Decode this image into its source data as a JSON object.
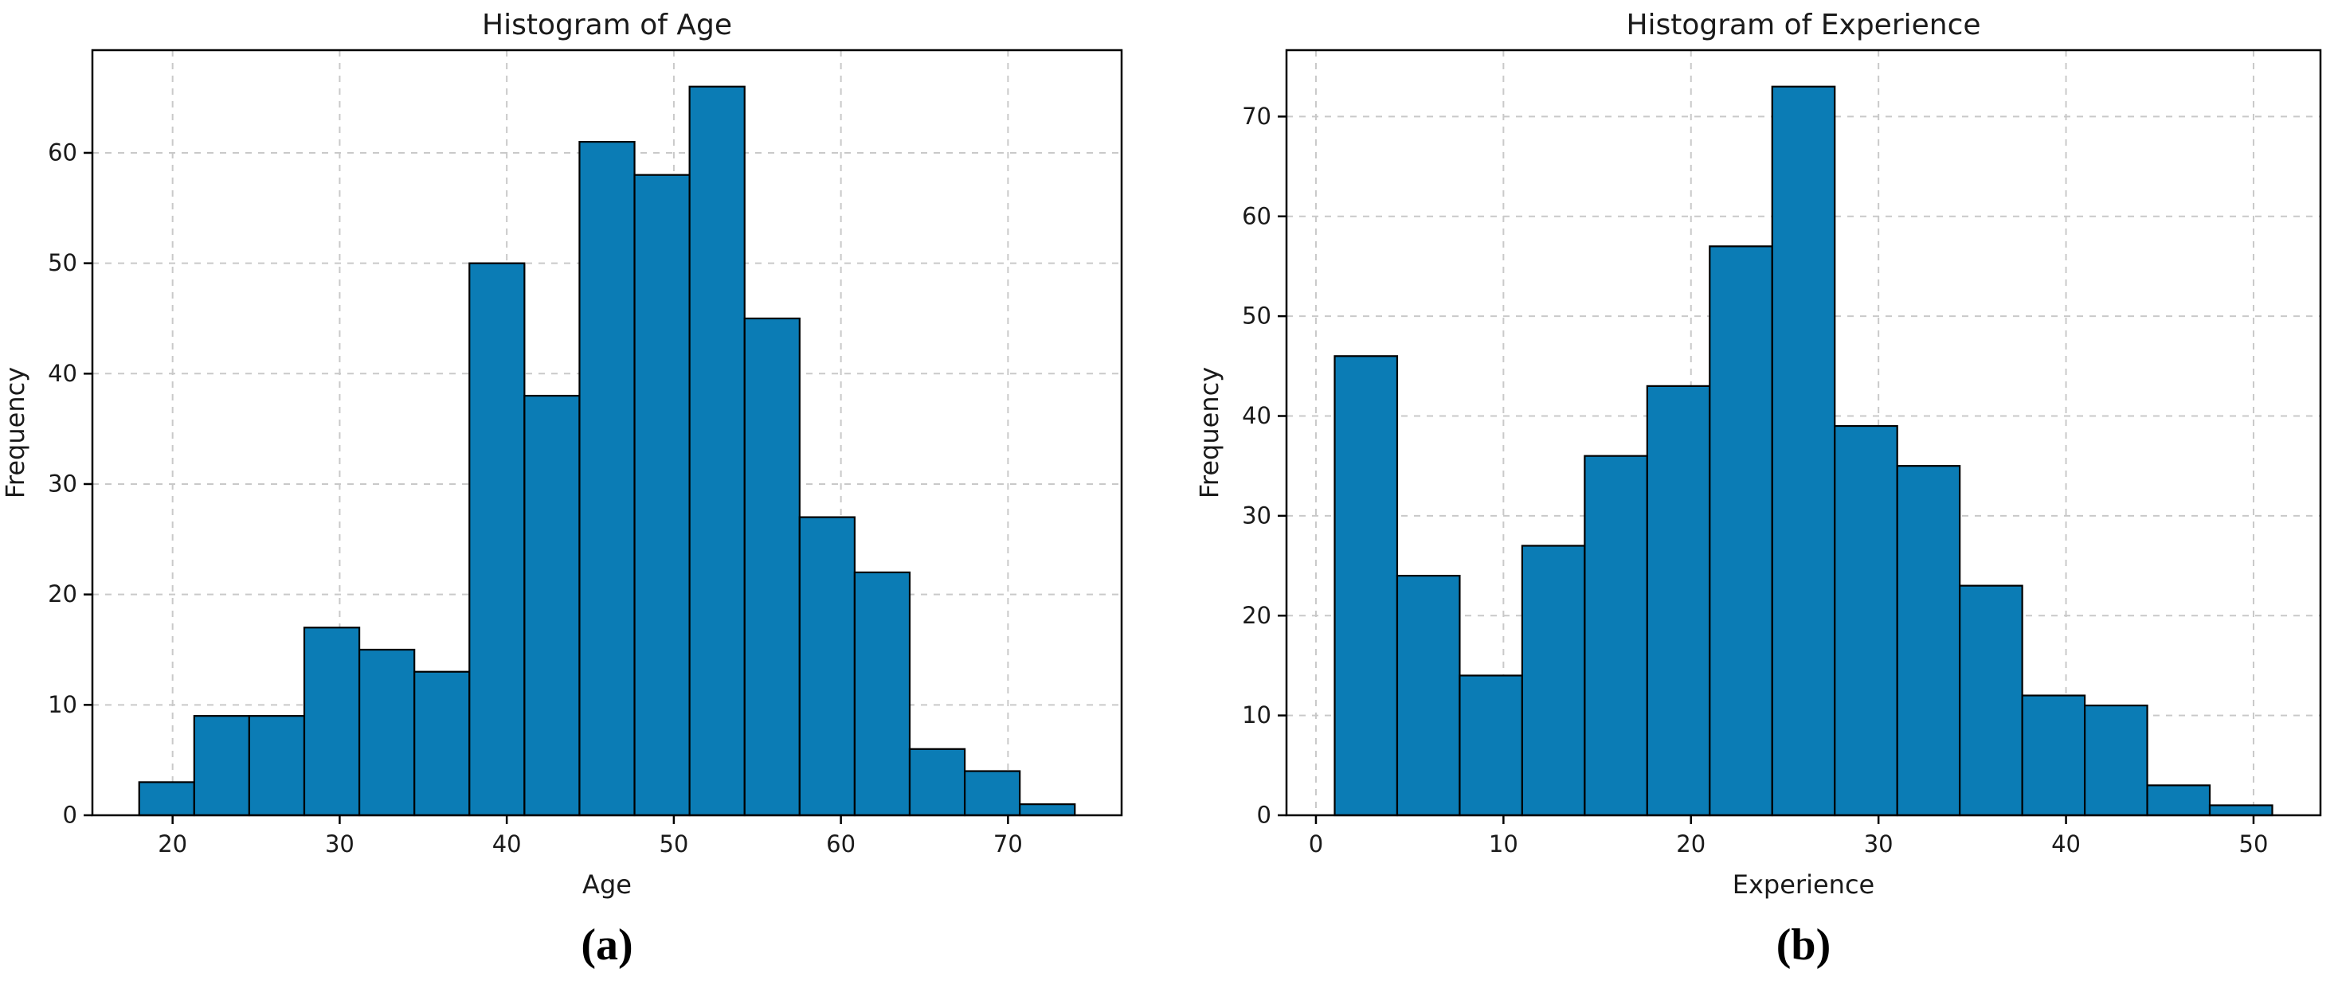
{
  "figure": {
    "background": "#ffffff",
    "text_color": "#1a1a1a",
    "grid_color": "#c9c9c9",
    "spine_color": "#000000"
  },
  "chart_data": [
    {
      "type": "bar",
      "subtype": "histogram",
      "title": "Histogram of Age",
      "xlabel": "Age",
      "ylabel": "Frequency",
      "caption": "(a)",
      "bin_start": 18,
      "bin_width": 3.2941,
      "values": [
        3,
        9,
        9,
        17,
        15,
        13,
        50,
        38,
        61,
        58,
        66,
        45,
        27,
        22,
        6,
        4,
        1
      ],
      "x_ticks": [
        20,
        30,
        40,
        50,
        60,
        70
      ],
      "y_ticks": [
        0,
        10,
        20,
        30,
        40,
        50,
        60
      ],
      "xlim": [
        15.2,
        76.8
      ],
      "ylim": [
        0,
        69.3
      ],
      "grid": true,
      "grid_style": "dashed",
      "legend": "none",
      "bar_color": "#0b7cb5",
      "bar_edge_color": "#000000"
    },
    {
      "type": "bar",
      "subtype": "histogram",
      "title": "Histogram of Experience",
      "xlabel": "Experience",
      "ylabel": "Frequency",
      "caption": "(b)",
      "bin_start": 1,
      "bin_width": 3.3333,
      "values": [
        46,
        24,
        14,
        27,
        36,
        43,
        57,
        73,
        39,
        35,
        23,
        12,
        11,
        3,
        1
      ],
      "x_ticks": [
        0,
        10,
        20,
        30,
        40,
        50
      ],
      "y_ticks": [
        0,
        10,
        20,
        30,
        40,
        50,
        60,
        70
      ],
      "xlim": [
        -1.57,
        53.57
      ],
      "ylim": [
        0,
        76.65
      ],
      "grid": true,
      "grid_style": "dashed",
      "legend": "none",
      "bar_color": "#0b7cb5",
      "bar_edge_color": "#000000"
    }
  ]
}
